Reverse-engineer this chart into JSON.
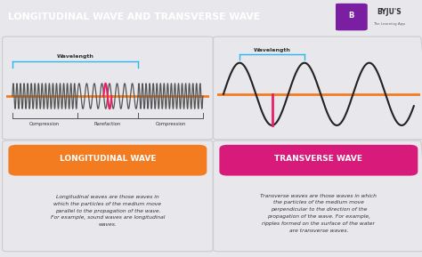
{
  "title": "LONGITUDINAL WAVE AND TRANSVERSE WAVE",
  "title_bg": "#7b1fa2",
  "title_color": "#ffffff",
  "main_bg": "#e8e8ec",
  "panel_bg": "#ffffff",
  "byju_text": "BYJU'S",
  "byju_sub": "The Learning App",
  "byju_bg": "#f5f5f5",
  "long_label": "LONGITUDINAL WAVE",
  "trans_label": "TRANSVERSE WAVE",
  "long_color": "#f47c20",
  "trans_color": "#d81b7a",
  "long_desc": "Longitudinal waves are those waves in\nwhich the particles of the medium move\nparallel to the propagation of the wave.\nFor example, sound waves are longitudinal\nwaves.",
  "trans_desc": "Transverse waves are those waves in which\nthe particles of the medium move\nperpendicular to the direction of the\npropagation of the wave. For example,\nripples formed on the surface of the water\nare transverse waves.",
  "axis_color": "#f47c20",
  "wave_color": "#555555",
  "highlight_color": "#e91e63",
  "wavelength_color": "#29b6f6",
  "compression_label": "Compression",
  "rarefaction_label": "Rarefaction",
  "wavelength_label": "Wavelength"
}
